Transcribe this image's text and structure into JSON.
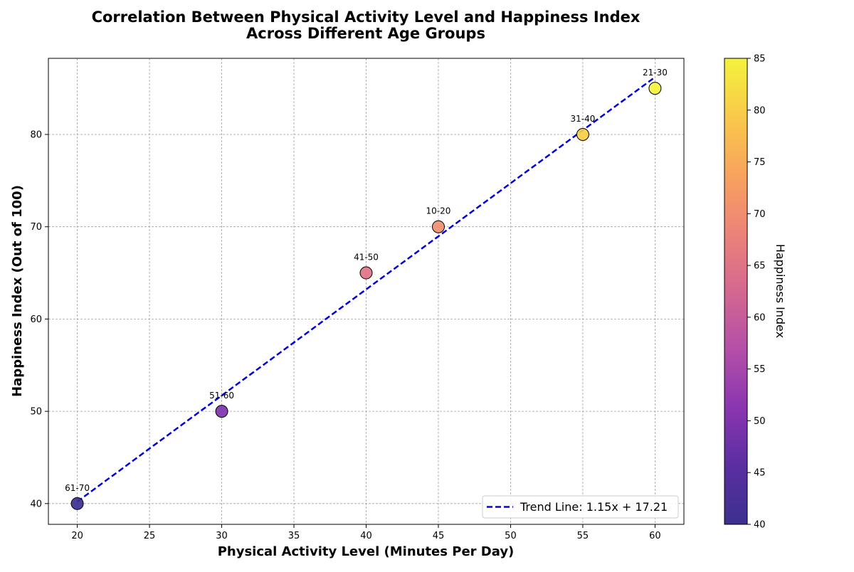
{
  "chart_data": {
    "type": "scatter",
    "title_line1": "Correlation Between Physical Activity Level and Happiness Index",
    "title_line2": "Across Different Age Groups",
    "xlabel": "Physical Activity Level (Minutes Per Day)",
    "ylabel": "Happiness Index (Out of 100)",
    "xlim": [
      18,
      62
    ],
    "ylim": [
      37.75,
      88.25
    ],
    "xticks": [
      20,
      25,
      30,
      35,
      40,
      45,
      50,
      55,
      60
    ],
    "yticks": [
      40,
      50,
      60,
      70,
      80
    ],
    "grid": true,
    "points": [
      {
        "label": "10-20",
        "x": 45,
        "y": 70
      },
      {
        "label": "21-30",
        "x": 60,
        "y": 85
      },
      {
        "label": "31-40",
        "x": 55,
        "y": 80
      },
      {
        "label": "41-50",
        "x": 40,
        "y": 65
      },
      {
        "label": "51-60",
        "x": 30,
        "y": 50
      },
      {
        "label": "61-70",
        "x": 20,
        "y": 40
      }
    ],
    "trend": {
      "slope": 1.15,
      "intercept": 17.21,
      "legend_label": "Trend Line: 1.15x + 17.21",
      "color": "#0000dd"
    },
    "legend_position": "lower-right",
    "colorbar": {
      "label": "Happiness Index",
      "colormap": "plasma",
      "range": [
        40,
        85
      ],
      "ticks": [
        40,
        45,
        50,
        55,
        60,
        65,
        70,
        75,
        80,
        85
      ]
    }
  }
}
